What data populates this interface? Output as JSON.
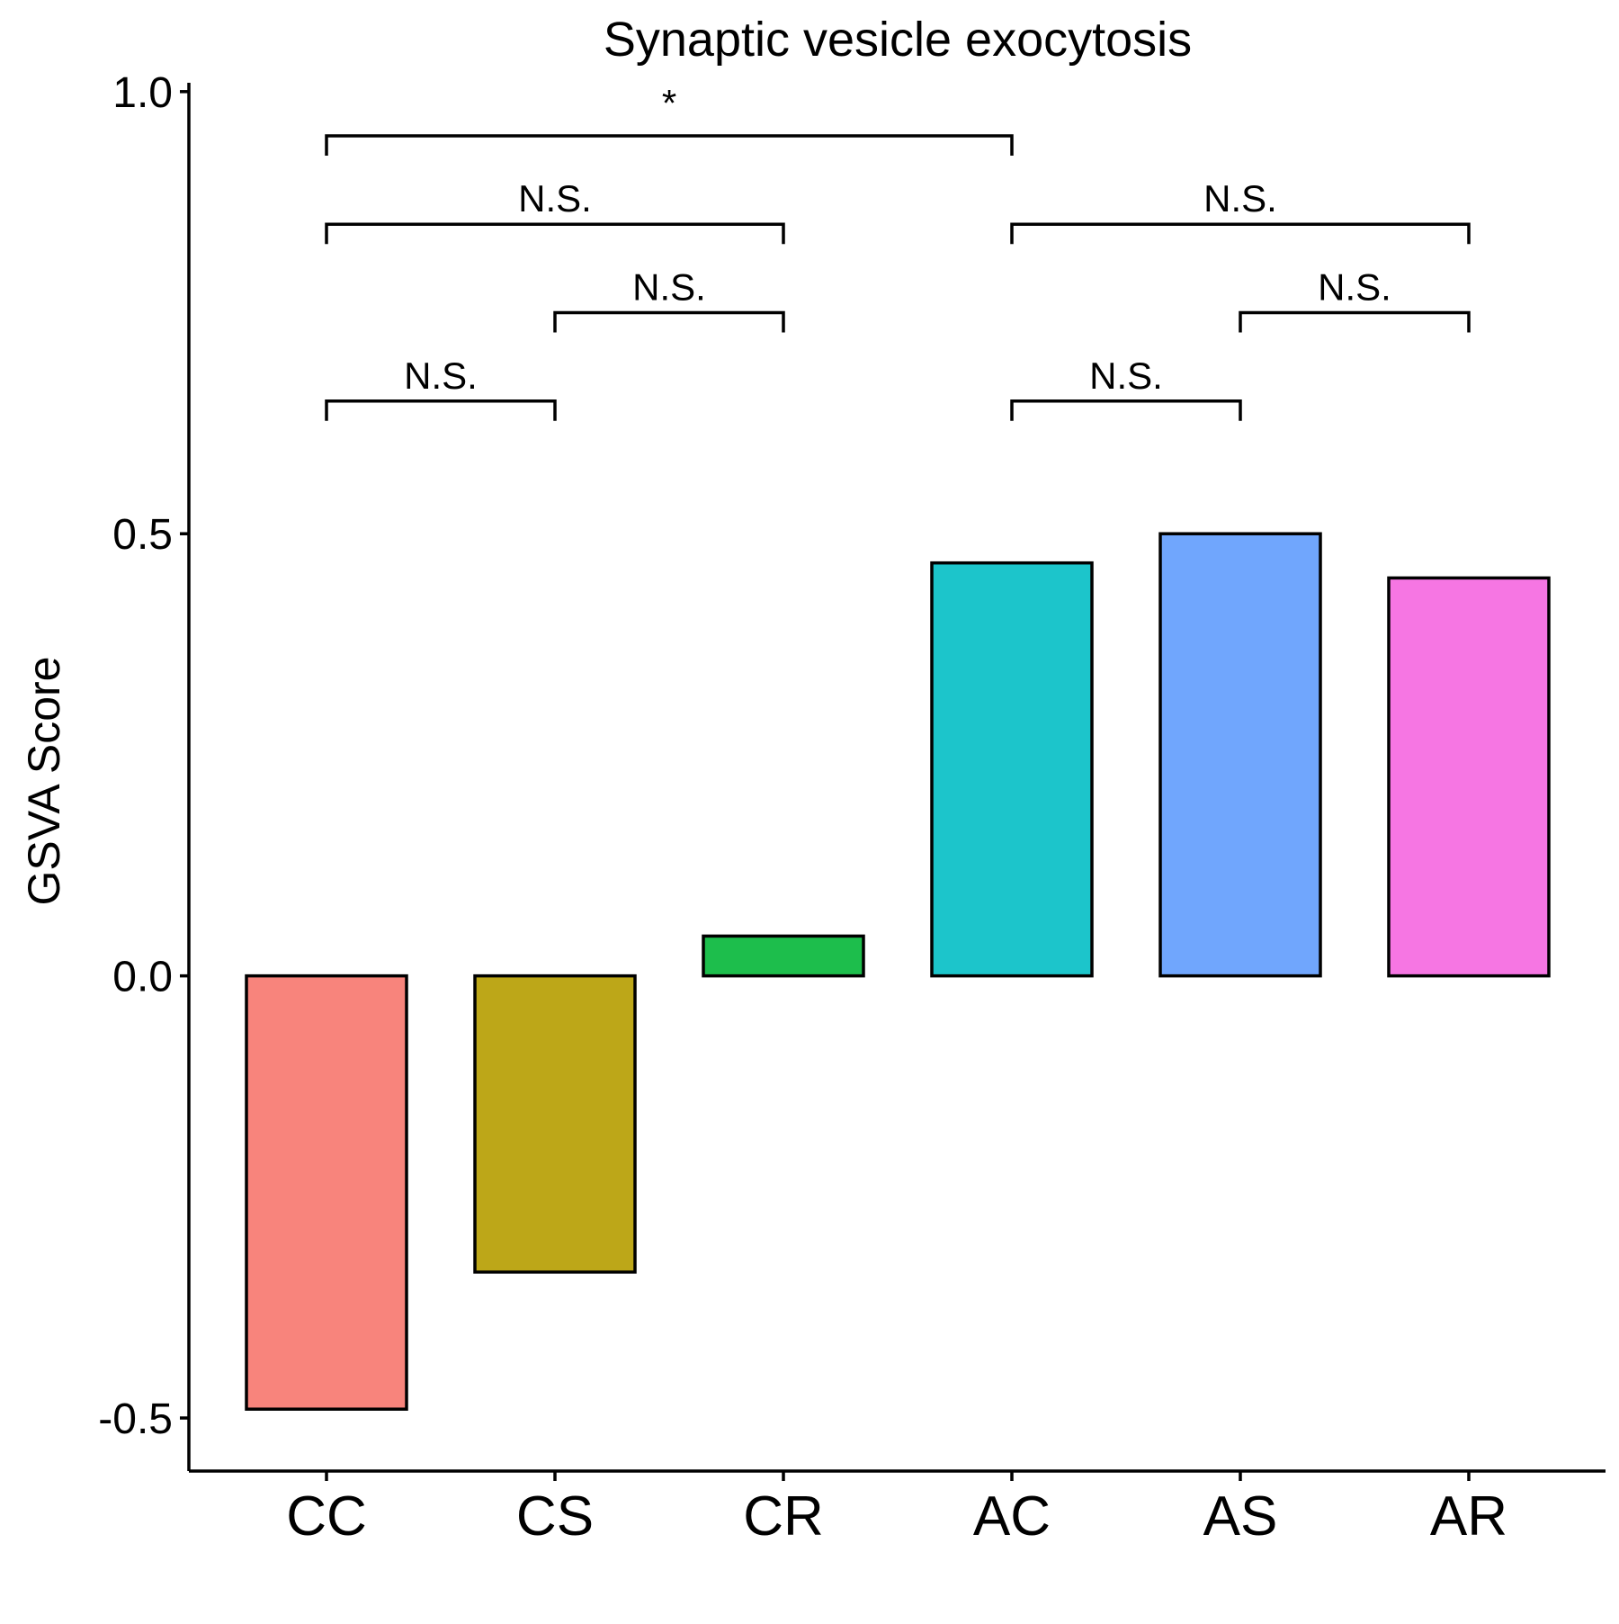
{
  "chart_data": {
    "type": "bar",
    "title": "Synaptic vesicle exocytosis",
    "xlabel": "",
    "ylabel": "GSVA Score",
    "categories": [
      "CC",
      "CS",
      "CR",
      "AC",
      "AS",
      "AR"
    ],
    "values": [
      -0.49,
      -0.335,
      0.045,
      0.467,
      0.5,
      0.45
    ],
    "colors": [
      "#F8847C",
      "#BDA718",
      "#1DBE4C",
      "#1CC5CB",
      "#70A6FD",
      "#F676E3"
    ],
    "ylim": [
      -0.56,
      1.01
    ],
    "yticks": [
      -0.5,
      0.0,
      0.5,
      1.0
    ],
    "ytick_labels": [
      "-0.5",
      "0.0",
      "0.5",
      "1.0"
    ],
    "grid": false,
    "legend": "none",
    "comparisons": [
      {
        "from": "CC",
        "to": "CS",
        "label": "N.S.",
        "y": 0.65
      },
      {
        "from": "CS",
        "to": "CR",
        "label": "N.S.",
        "y": 0.75
      },
      {
        "from": "CC",
        "to": "CR",
        "label": "N.S.",
        "y": 0.85
      },
      {
        "from": "CC",
        "to": "AC",
        "label": "*",
        "y": 0.95
      },
      {
        "from": "AC",
        "to": "AS",
        "label": "N.S.",
        "y": 0.65
      },
      {
        "from": "AS",
        "to": "AR",
        "label": "N.S.",
        "y": 0.75
      },
      {
        "from": "AC",
        "to": "AR",
        "label": "N.S.",
        "y": 0.85
      }
    ]
  }
}
